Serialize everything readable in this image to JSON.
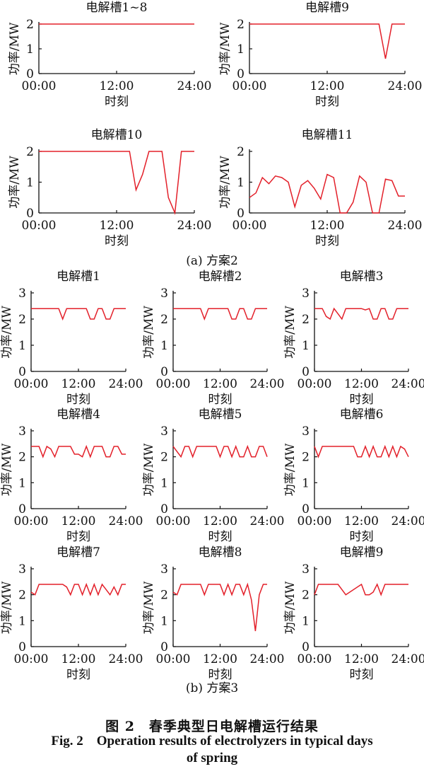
{
  "figure": {
    "caption_cn": "图 2　春季典型日电解槽运行结果",
    "caption_en_line1": "Fig. 2　Operation results of electrolyzers in typical days",
    "caption_en_line2": "of spring",
    "line_color": "#e3202a"
  },
  "sections": [
    {
      "key": "a",
      "label": "(a) 方案2"
    },
    {
      "key": "b",
      "label": "(b) 方案3"
    }
  ],
  "chart_data": [
    {
      "section": "a",
      "type": "line",
      "title": "电解槽1~8",
      "xlabel": "时刻",
      "ylabel": "功率/MW",
      "xticks": [
        "00:00",
        "12:00",
        "24:00"
      ],
      "yticks": [
        0,
        1,
        2
      ],
      "xlim": [
        0,
        24
      ],
      "ylim": [
        0,
        2
      ],
      "series": [
        {
          "x": [
            0,
            24
          ],
          "y": [
            2,
            2
          ]
        }
      ]
    },
    {
      "section": "a",
      "type": "line",
      "title": "电解槽9",
      "xlabel": "时刻",
      "ylabel": "功率/MW",
      "xticks": [
        "00:00",
        "12:00",
        "24:00"
      ],
      "yticks": [
        0,
        1,
        2
      ],
      "xlim": [
        0,
        24
      ],
      "ylim": [
        0,
        2
      ],
      "series": [
        {
          "x": [
            0,
            20,
            21,
            22,
            23,
            24
          ],
          "y": [
            2,
            2,
            0.6,
            2,
            2,
            2
          ]
        }
      ]
    },
    {
      "section": "a",
      "type": "line",
      "title": "电解槽10",
      "xlabel": "时刻",
      "ylabel": "功率/MW",
      "xticks": [
        "00:00",
        "12:00",
        "24:00"
      ],
      "yticks": [
        0,
        1,
        2
      ],
      "xlim": [
        0,
        24
      ],
      "ylim": [
        0,
        2
      ],
      "series": [
        {
          "x": [
            0,
            14,
            15,
            16,
            17,
            18,
            19,
            20,
            21,
            22,
            23,
            24
          ],
          "y": [
            2,
            2,
            0.75,
            1.25,
            2,
            2,
            2,
            0.5,
            0,
            2,
            2,
            2
          ]
        }
      ]
    },
    {
      "section": "a",
      "type": "line",
      "title": "电解槽11",
      "xlabel": "时刻",
      "ylabel": "功率/MW",
      "xticks": [
        "00:00",
        "12:00",
        "24:00"
      ],
      "yticks": [
        0,
        1,
        2
      ],
      "xlim": [
        0,
        24
      ],
      "ylim": [
        0,
        2
      ],
      "series": [
        {
          "x": [
            0,
            1,
            2,
            3,
            4,
            5,
            6,
            7,
            8,
            9,
            10,
            11,
            12,
            13,
            14,
            15,
            16,
            17,
            18,
            19,
            20,
            21,
            22,
            23,
            24
          ],
          "y": [
            0.5,
            0.65,
            1.15,
            0.95,
            1.2,
            1.15,
            1.0,
            0.2,
            0.9,
            1.05,
            0.8,
            0.45,
            1.25,
            1.15,
            0,
            0,
            0.35,
            1.2,
            1.0,
            0,
            0,
            1.1,
            1.05,
            0.55,
            0.55
          ]
        }
      ]
    },
    {
      "section": "b",
      "type": "line",
      "title": "电解槽1",
      "xlabel": "时刻",
      "ylabel": "功率/MW",
      "xticks": [
        "00:00",
        "12:00",
        "24:00"
      ],
      "yticks": [
        0,
        1,
        2,
        3
      ],
      "xlim": [
        0,
        24
      ],
      "ylim": [
        0,
        3
      ],
      "series": [
        {
          "x": [
            0,
            7,
            8,
            9,
            14,
            15,
            16,
            17,
            18,
            19,
            20,
            21,
            22,
            23,
            24
          ],
          "y": [
            2.4,
            2.4,
            2.0,
            2.4,
            2.4,
            2.0,
            2.0,
            2.4,
            2.4,
            2.0,
            2.0,
            2.4,
            2.4,
            2.4,
            2.4
          ]
        }
      ]
    },
    {
      "section": "b",
      "type": "line",
      "title": "电解槽2",
      "xlabel": "时刻",
      "ylabel": "功率/MW",
      "xticks": [
        "00:00",
        "12:00",
        "24:00"
      ],
      "yticks": [
        0,
        1,
        2,
        3
      ],
      "xlim": [
        0,
        24
      ],
      "ylim": [
        0,
        3
      ],
      "series": [
        {
          "x": [
            0,
            7,
            8,
            9,
            14,
            15,
            16,
            17,
            18,
            19,
            20,
            21,
            22,
            23,
            24
          ],
          "y": [
            2.4,
            2.4,
            2.0,
            2.4,
            2.4,
            2.0,
            2.0,
            2.4,
            2.4,
            2.0,
            2.0,
            2.4,
            2.4,
            2.4,
            2.4
          ]
        }
      ]
    },
    {
      "section": "b",
      "type": "line",
      "title": "电解槽3",
      "xlabel": "时刻",
      "ylabel": "功率/MW",
      "xticks": [
        "00:00",
        "12:00",
        "24:00"
      ],
      "yticks": [
        0,
        1,
        2,
        3
      ],
      "xlim": [
        0,
        24
      ],
      "ylim": [
        0,
        3
      ],
      "series": [
        {
          "x": [
            0,
            2,
            3,
            4,
            5,
            6,
            7,
            8,
            9,
            12,
            13,
            14,
            15,
            16,
            17,
            18,
            19,
            20,
            21,
            22,
            23,
            24
          ],
          "y": [
            2.4,
            2.4,
            2.1,
            2.0,
            2.4,
            2.2,
            2.0,
            2.4,
            2.4,
            2.4,
            2.35,
            2.4,
            2.0,
            2.0,
            2.4,
            2.4,
            2.0,
            2.0,
            2.4,
            2.4,
            2.4,
            2.4
          ]
        }
      ]
    },
    {
      "section": "b",
      "type": "line",
      "title": "电解槽4",
      "xlabel": "时刻",
      "ylabel": "功率/MW",
      "xticks": [
        "00:00",
        "12:00",
        "24:00"
      ],
      "yticks": [
        0,
        1,
        2,
        3
      ],
      "xlim": [
        0,
        24
      ],
      "ylim": [
        0,
        3
      ],
      "series": [
        {
          "x": [
            0,
            2,
            3,
            4,
            5,
            6,
            7,
            8,
            9,
            10,
            11,
            12,
            13,
            14,
            15,
            16,
            17,
            18,
            19,
            20,
            21,
            22,
            23,
            24
          ],
          "y": [
            2.4,
            2.4,
            2.0,
            2.4,
            2.3,
            2.0,
            2.4,
            2.4,
            2.4,
            2.4,
            2.1,
            2.1,
            2.0,
            2.4,
            2.0,
            2.4,
            2.4,
            2.4,
            2.0,
            2.0,
            2.4,
            2.4,
            2.1,
            2.1
          ]
        }
      ]
    },
    {
      "section": "b",
      "type": "line",
      "title": "电解槽5",
      "xlabel": "时刻",
      "ylabel": "功率/MW",
      "xticks": [
        "00:00",
        "12:00",
        "24:00"
      ],
      "yticks": [
        0,
        1,
        2,
        3
      ],
      "xlim": [
        0,
        24
      ],
      "ylim": [
        0,
        3
      ],
      "series": [
        {
          "x": [
            0,
            2,
            3,
            4,
            5,
            6,
            10,
            11,
            12,
            13,
            14,
            15,
            16,
            17,
            18,
            19,
            20,
            21,
            22,
            23,
            24
          ],
          "y": [
            2.4,
            2.0,
            2.4,
            2.4,
            2.0,
            2.4,
            2.4,
            2.4,
            2.0,
            2.4,
            2.4,
            2.0,
            2.4,
            2.0,
            2.0,
            2.4,
            2.0,
            2.0,
            2.4,
            2.4,
            2.0
          ]
        }
      ]
    },
    {
      "section": "b",
      "type": "line",
      "title": "电解槽6",
      "xlabel": "时刻",
      "ylabel": "功率/MW",
      "xticks": [
        "00:00",
        "12:00",
        "24:00"
      ],
      "yticks": [
        0,
        1,
        2,
        3
      ],
      "xlim": [
        0,
        24
      ],
      "ylim": [
        0,
        3
      ],
      "series": [
        {
          "x": [
            0,
            1,
            2,
            9,
            10,
            11,
            12,
            13,
            14,
            15,
            16,
            17,
            18,
            19,
            20,
            21,
            22,
            23,
            24
          ],
          "y": [
            2.4,
            2.0,
            2.4,
            2.4,
            2.4,
            2.0,
            2.0,
            2.4,
            2.0,
            2.4,
            2.0,
            2.0,
            2.4,
            2.0,
            2.4,
            2.0,
            2.4,
            2.3,
            2.0
          ]
        }
      ]
    },
    {
      "section": "b",
      "type": "line",
      "title": "电解槽7",
      "xlabel": "时刻",
      "ylabel": "功率/MW",
      "xticks": [
        "00:00",
        "12:00",
        "24:00"
      ],
      "yticks": [
        0,
        1,
        2,
        3
      ],
      "xlim": [
        0,
        24
      ],
      "ylim": [
        0,
        3
      ],
      "series": [
        {
          "x": [
            0,
            1,
            2,
            3,
            4,
            5,
            6,
            7,
            8,
            9,
            10,
            11,
            12,
            13,
            14,
            15,
            16,
            17,
            18,
            19,
            20,
            21,
            22,
            23,
            24
          ],
          "y": [
            2.1,
            2.0,
            2.4,
            2.4,
            2.4,
            2.4,
            2.4,
            2.4,
            2.4,
            2.3,
            2.0,
            2.4,
            2.4,
            2.0,
            2.4,
            2.0,
            2.4,
            2.0,
            2.4,
            2.2,
            2.0,
            2.3,
            2.0,
            2.4,
            2.4
          ]
        }
      ]
    },
    {
      "section": "b",
      "type": "line",
      "title": "电解槽8",
      "xlabel": "时刻",
      "ylabel": "功率/MW",
      "xticks": [
        "00:00",
        "12:00",
        "24:00"
      ],
      "yticks": [
        0,
        1,
        2,
        3
      ],
      "xlim": [
        0,
        24
      ],
      "ylim": [
        0,
        3
      ],
      "series": [
        {
          "x": [
            0,
            1,
            2,
            6,
            7,
            8,
            9,
            10,
            11,
            12,
            13,
            14,
            15,
            16,
            17,
            18,
            19,
            20,
            21,
            22,
            23,
            24
          ],
          "y": [
            2.1,
            2.0,
            2.4,
            2.4,
            2.4,
            2.0,
            2.4,
            2.4,
            2.4,
            2.4,
            2.0,
            2.4,
            2.0,
            2.4,
            2.4,
            2.0,
            2.4,
            1.8,
            0.6,
            2.0,
            2.4,
            2.4
          ]
        }
      ]
    },
    {
      "section": "b",
      "type": "line",
      "title": "电解槽9",
      "xlabel": "时刻",
      "ylabel": "功率/MW",
      "xticks": [
        "00:00",
        "12:00",
        "24:00"
      ],
      "yticks": [
        0,
        1,
        2,
        3
      ],
      "xlim": [
        0,
        24
      ],
      "ylim": [
        0,
        3
      ],
      "series": [
        {
          "x": [
            0,
            1,
            2,
            6,
            7,
            8,
            12,
            13,
            14,
            15,
            16,
            17,
            18,
            19,
            22,
            24
          ],
          "y": [
            2.0,
            2.4,
            2.4,
            2.4,
            2.2,
            2.0,
            2.4,
            2.0,
            2.0,
            2.1,
            2.4,
            2.0,
            2.4,
            2.4,
            2.4,
            2.4
          ]
        }
      ]
    }
  ]
}
